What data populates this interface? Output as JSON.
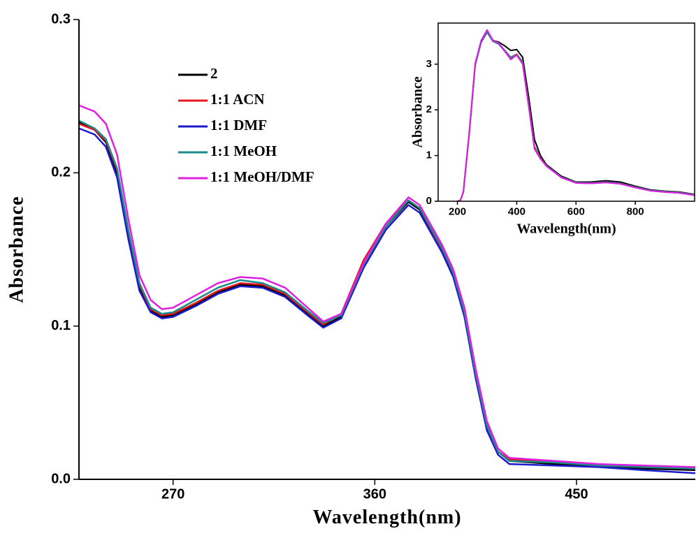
{
  "chart_data": [
    {
      "type": "line",
      "xlabel": "Wavelength(nm)",
      "ylabel": "Absorbance",
      "xlim": [
        228,
        503
      ],
      "ylim": [
        0,
        0.3
      ],
      "xticks": [
        270,
        360,
        450
      ],
      "yticks": [
        {
          "value": 0,
          "label": "0.0"
        },
        0.1,
        0.2,
        0.3
      ],
      "legend": "upper left",
      "x": [
        228,
        235,
        240,
        245,
        250,
        255,
        260,
        265,
        270,
        280,
        290,
        300,
        310,
        320,
        330,
        337,
        345,
        355,
        365,
        375,
        380,
        390,
        395,
        400,
        405,
        410,
        415,
        420,
        440,
        460,
        480,
        503
      ],
      "series": [
        {
          "name": "2",
          "color": "#000000",
          "values": [
            0.233,
            0.228,
            0.22,
            0.2,
            0.16,
            0.125,
            0.11,
            0.106,
            0.107,
            0.114,
            0.122,
            0.127,
            0.126,
            0.12,
            0.108,
            0.1,
            0.106,
            0.14,
            0.165,
            0.181,
            0.176,
            0.15,
            0.135,
            0.11,
            0.07,
            0.035,
            0.018,
            0.012,
            0.01,
            0.009,
            0.007,
            0.006
          ]
        },
        {
          "name": "1:1 ACN",
          "color": "#e8141c",
          "values": [
            0.232,
            0.228,
            0.221,
            0.202,
            0.162,
            0.127,
            0.111,
            0.107,
            0.108,
            0.115,
            0.123,
            0.128,
            0.127,
            0.121,
            0.109,
            0.101,
            0.108,
            0.143,
            0.167,
            0.182,
            0.177,
            0.15,
            0.134,
            0.108,
            0.068,
            0.034,
            0.018,
            0.013,
            0.011,
            0.009,
            0.008,
            0.007
          ]
        },
        {
          "name": "1:1 DMF",
          "color": "#1a1acc",
          "values": [
            0.229,
            0.225,
            0.217,
            0.197,
            0.157,
            0.123,
            0.109,
            0.105,
            0.106,
            0.113,
            0.121,
            0.126,
            0.125,
            0.119,
            0.107,
            0.099,
            0.105,
            0.138,
            0.163,
            0.179,
            0.174,
            0.148,
            0.132,
            0.106,
            0.066,
            0.032,
            0.016,
            0.01,
            0.009,
            0.008,
            0.006,
            0.004
          ]
        },
        {
          "name": "1:1 MeOH",
          "color": "#1a8a8a",
          "values": [
            0.234,
            0.229,
            0.222,
            0.203,
            0.163,
            0.128,
            0.112,
            0.108,
            0.109,
            0.117,
            0.125,
            0.13,
            0.128,
            0.122,
            0.11,
            0.102,
            0.107,
            0.14,
            0.165,
            0.182,
            0.177,
            0.151,
            0.135,
            0.109,
            0.069,
            0.035,
            0.018,
            0.012,
            0.011,
            0.009,
            0.008,
            0.007
          ]
        },
        {
          "name": "1:1 MeOH/DMF",
          "color": "#e020e0",
          "values": [
            0.244,
            0.24,
            0.232,
            0.212,
            0.17,
            0.133,
            0.117,
            0.111,
            0.112,
            0.12,
            0.128,
            0.132,
            0.131,
            0.125,
            0.112,
            0.103,
            0.108,
            0.141,
            0.167,
            0.184,
            0.179,
            0.153,
            0.137,
            0.112,
            0.072,
            0.038,
            0.02,
            0.014,
            0.012,
            0.01,
            0.009,
            0.008
          ]
        }
      ]
    },
    {
      "type": "line",
      "xlabel": "Wavelength(nm)",
      "ylabel": "Absorbance",
      "xlim": [
        135,
        1000
      ],
      "ylim": [
        0,
        3.9
      ],
      "xticks": [
        200,
        400,
        600,
        800
      ],
      "yticks": [
        0,
        1,
        2,
        3
      ],
      "x": [
        200,
        210,
        220,
        240,
        260,
        280,
        300,
        320,
        340,
        360,
        380,
        400,
        420,
        440,
        460,
        480,
        500,
        550,
        600,
        650,
        700,
        750,
        800,
        850,
        900,
        950,
        1000
      ],
      "series": [
        {
          "color": "#000000",
          "values": [
            0,
            0.02,
            0.2,
            1.5,
            3.0,
            3.5,
            3.72,
            3.52,
            3.48,
            3.4,
            3.3,
            3.32,
            3.15,
            2.3,
            1.35,
            1.0,
            0.8,
            0.55,
            0.42,
            0.42,
            0.45,
            0.42,
            0.33,
            0.25,
            0.22,
            0.2,
            0.15
          ]
        },
        {
          "color": "#e8141c",
          "values": [
            0,
            0.02,
            0.2,
            1.5,
            3.0,
            3.5,
            3.7,
            3.5,
            3.45,
            3.3,
            3.15,
            3.22,
            3.05,
            2.15,
            1.2,
            0.95,
            0.78,
            0.53,
            0.41,
            0.4,
            0.42,
            0.39,
            0.31,
            0.24,
            0.21,
            0.19,
            0.14
          ]
        },
        {
          "color": "#1a1acc",
          "values": [
            0,
            0.02,
            0.19,
            1.48,
            2.98,
            3.48,
            3.7,
            3.5,
            3.44,
            3.28,
            3.12,
            3.2,
            3.02,
            2.1,
            1.15,
            0.93,
            0.77,
            0.52,
            0.4,
            0.39,
            0.41,
            0.38,
            0.3,
            0.23,
            0.2,
            0.18,
            0.13
          ]
        },
        {
          "color": "#1a8a8a",
          "values": [
            0,
            0.02,
            0.2,
            1.5,
            3.0,
            3.5,
            3.71,
            3.5,
            3.45,
            3.3,
            3.14,
            3.21,
            3.04,
            2.12,
            1.18,
            0.94,
            0.78,
            0.53,
            0.41,
            0.4,
            0.42,
            0.39,
            0.31,
            0.24,
            0.21,
            0.19,
            0.14
          ]
        },
        {
          "color": "#e020e0",
          "values": [
            0,
            0.02,
            0.21,
            1.52,
            3.02,
            3.52,
            3.75,
            3.52,
            3.46,
            3.28,
            3.1,
            3.2,
            3.0,
            2.1,
            1.15,
            0.93,
            0.77,
            0.52,
            0.4,
            0.39,
            0.41,
            0.38,
            0.3,
            0.23,
            0.2,
            0.18,
            0.13
          ]
        }
      ]
    }
  ]
}
